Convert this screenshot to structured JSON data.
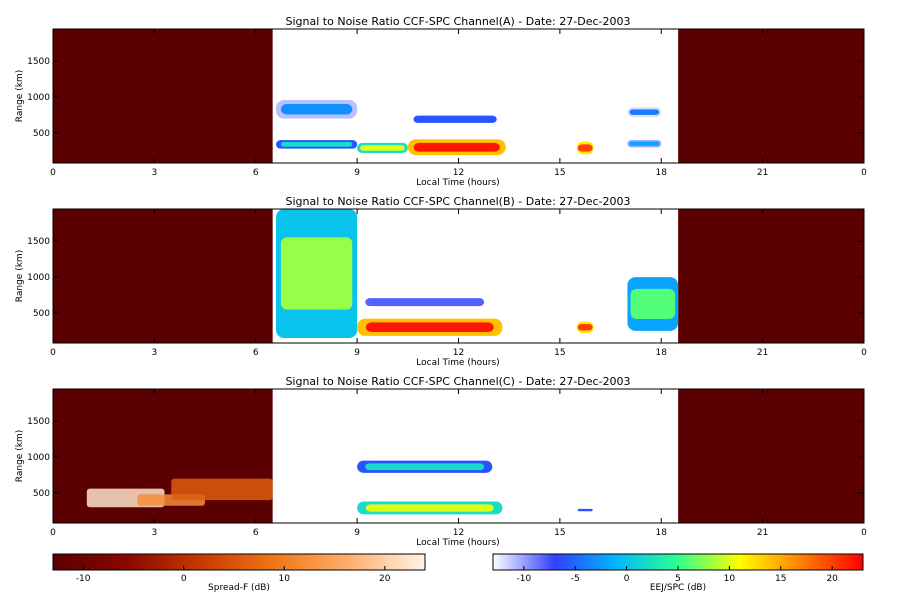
{
  "chart_data": [
    {
      "type": "heatmap",
      "title": "Signal to Noise Ratio CCF-SPC Channel(A) - Date: 27-Dec-2003",
      "xlabel": "Local Time (hours)",
      "ylabel": "Range (km)",
      "xlim": [
        0,
        24
      ],
      "ylim": [
        80,
        1950
      ],
      "xticks": [
        "0",
        "3",
        "6",
        "9",
        "12",
        "15",
        "18",
        "21",
        "0"
      ],
      "yticks": [
        500,
        1000,
        1500
      ],
      "no_data_intervals": [
        [
          0,
          6.5
        ],
        [
          18.5,
          24
        ]
      ],
      "echoes": [
        {
          "t": [
            6.6,
            9.0
          ],
          "range": [
            700,
            960
          ],
          "snr_db": -3
        },
        {
          "t": [
            6.6,
            9.0
          ],
          "range": [
            280,
            400
          ],
          "snr_db": 2
        },
        {
          "t": [
            9.0,
            10.5
          ],
          "range": [
            220,
            360
          ],
          "snr_db": 10
        },
        {
          "t": [
            10.5,
            13.4
          ],
          "range": [
            190,
            410
          ],
          "snr_db": 22
        },
        {
          "t": [
            10.5,
            13.3
          ],
          "range": [
            600,
            780
          ],
          "snr_db": -6
        },
        {
          "t": [
            15.5,
            16.0
          ],
          "range": [
            200,
            380
          ],
          "snr_db": 20
        },
        {
          "t": [
            17.0,
            18.0
          ],
          "range": [
            720,
            860
          ],
          "snr_db": -4
        },
        {
          "t": [
            17.0,
            18.0
          ],
          "range": [
            300,
            400
          ],
          "snr_db": -2
        }
      ]
    },
    {
      "type": "heatmap",
      "title": "Signal to Noise Ratio CCF-SPC Channel(B) - Date: 27-Dec-2003",
      "xlabel": "Local Time (hours)",
      "ylabel": "Range (km)",
      "xlim": [
        0,
        24
      ],
      "ylim": [
        80,
        1950
      ],
      "xticks": [
        "0",
        "3",
        "6",
        "9",
        "12",
        "15",
        "18",
        "21",
        "0"
      ],
      "yticks": [
        500,
        1000,
        1500
      ],
      "no_data_intervals": [
        [
          0,
          6.5
        ],
        [
          18.5,
          24
        ]
      ],
      "echoes": [
        {
          "t": [
            6.6,
            9.0
          ],
          "range": [
            150,
            1950
          ],
          "snr_db": 8
        },
        {
          "t": [
            9.0,
            13.3
          ],
          "range": [
            180,
            420
          ],
          "snr_db": 22
        },
        {
          "t": [
            9.0,
            13.0
          ],
          "range": [
            550,
            750
          ],
          "snr_db": -8
        },
        {
          "t": [
            15.5,
            16.0
          ],
          "range": [
            220,
            380
          ],
          "snr_db": 20
        },
        {
          "t": [
            17.0,
            18.5
          ],
          "range": [
            250,
            1000
          ],
          "snr_db": 6
        }
      ]
    },
    {
      "type": "heatmap",
      "title": "Signal to Noise Ratio CCF-SPC Channel(C) - Date: 27-Dec-2003",
      "xlabel": "Local Time (hours)",
      "ylabel": "Range (km)",
      "xlim": [
        0,
        24
      ],
      "ylim": [
        80,
        1950
      ],
      "xticks": [
        "0",
        "3",
        "6",
        "9",
        "12",
        "15",
        "18",
        "21",
        "0"
      ],
      "yticks": [
        500,
        1000,
        1500
      ],
      "no_data_intervals": [
        [
          0,
          6.5
        ],
        [
          18.5,
          24
        ]
      ],
      "spread_f": [
        {
          "t": [
            1.0,
            3.3
          ],
          "range": [
            300,
            560
          ],
          "snr_db": 22
        },
        {
          "t": [
            2.5,
            4.5
          ],
          "range": [
            320,
            480
          ],
          "snr_db": 12
        },
        {
          "t": [
            3.5,
            6.5
          ],
          "range": [
            400,
            700
          ],
          "snr_db": 6
        }
      ],
      "echoes": [
        {
          "t": [
            9.0,
            13.0
          ],
          "range": [
            780,
            950
          ],
          "snr_db": 2
        },
        {
          "t": [
            9.0,
            13.3
          ],
          "range": [
            200,
            380
          ],
          "snr_db": 10
        },
        {
          "t": [
            15.5,
            16.0
          ],
          "range": [
            230,
            290
          ],
          "snr_db": -6
        }
      ]
    }
  ],
  "colorbars": [
    {
      "label": "Spread-F (dB)",
      "ticks": [
        "-10",
        "0",
        "10",
        "20"
      ],
      "range": [
        -13,
        24
      ],
      "colors": [
        "#5a0000",
        "#8a0800",
        "#c83a00",
        "#f07818",
        "#ffb070",
        "#fff4e8"
      ]
    },
    {
      "label": "EEJ/SPC (dB)",
      "ticks": [
        "-10",
        "-5",
        "0",
        "5",
        "10",
        "15",
        "20"
      ],
      "range": [
        -13,
        23
      ],
      "colors": [
        "#ffffff",
        "#3040ff",
        "#00b8ff",
        "#30ff90",
        "#ffff00",
        "#ff8000",
        "#ff0000"
      ]
    }
  ]
}
